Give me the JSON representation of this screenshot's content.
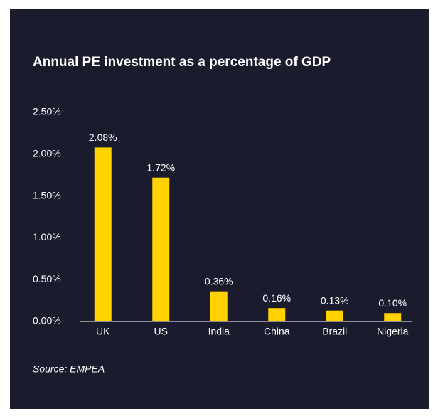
{
  "chart_data": {
    "type": "bar",
    "title": "Annual PE investment as a percentage of GDP",
    "categories": [
      "UK",
      "US",
      "India",
      "China",
      "Brazil",
      "Nigeria"
    ],
    "values": [
      2.08,
      1.72,
      0.36,
      0.16,
      0.13,
      0.1
    ],
    "value_labels": [
      "2.08%",
      "1.72%",
      "0.36%",
      "0.16%",
      "0.13%",
      "0.10%"
    ],
    "color": "#ffd200",
    "ylim": [
      0,
      2.5
    ],
    "yticks": [
      {
        "value": 0,
        "label": "0.00%"
      },
      {
        "value": 0.5,
        "label": "0.50%"
      },
      {
        "value": 1,
        "label": "1.00%"
      },
      {
        "value": 1.5,
        "label": "1.50%"
      },
      {
        "value": 2,
        "label": "2.00%"
      },
      {
        "value": 2.5,
        "label": "2.50%"
      }
    ],
    "source": "Source: EMPEA"
  }
}
